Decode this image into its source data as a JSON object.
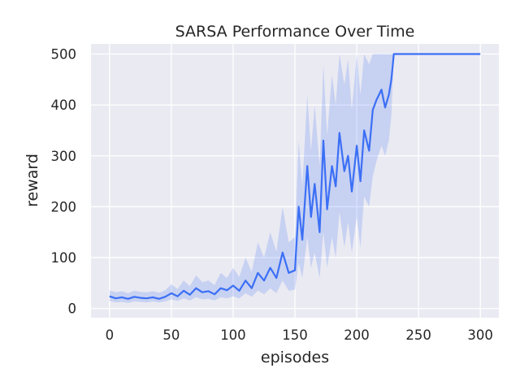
{
  "chart_data": {
    "type": "line",
    "title": "SARSA Performance Over Time",
    "xlabel": "episodes",
    "ylabel": "reward",
    "xlim": [
      -15,
      315
    ],
    "ylim": [
      -18,
      520
    ],
    "xticks": [
      0,
      50,
      100,
      150,
      200,
      250,
      300
    ],
    "yticks": [
      0,
      100,
      200,
      300,
      400,
      500
    ],
    "grid": true,
    "style": "seaborn-darkgrid",
    "colors": {
      "line": "#3b6ff5",
      "band": "#3b6ff5",
      "plot_background": "#eaeaf2",
      "grid": "#ffffff"
    },
    "series": [
      {
        "x": [
          0,
          5,
          10,
          15,
          20,
          25,
          30,
          35,
          40,
          45,
          50,
          55,
          60,
          65,
          70,
          75,
          80,
          85,
          90,
          95,
          100,
          105,
          110,
          115,
          120,
          125,
          130,
          135,
          140,
          145,
          150,
          153,
          156,
          160,
          163,
          166,
          170,
          173,
          176,
          180,
          183,
          186,
          190,
          193,
          196,
          200,
          203,
          206,
          210,
          213,
          216,
          220,
          223,
          226,
          228,
          230,
          235,
          240,
          245,
          250,
          260,
          270,
          280,
          290,
          300
        ],
        "mean": [
          24,
          20,
          22,
          19,
          23,
          21,
          20,
          22,
          19,
          23,
          30,
          24,
          35,
          27,
          40,
          32,
          34,
          28,
          40,
          36,
          45,
          35,
          55,
          40,
          70,
          55,
          80,
          60,
          110,
          70,
          75,
          200,
          135,
          280,
          180,
          245,
          150,
          330,
          195,
          280,
          240,
          345,
          270,
          300,
          230,
          320,
          250,
          350,
          310,
          390,
          410,
          430,
          395,
          420,
          450,
          500,
          500,
          500,
          500,
          500,
          500,
          500,
          500,
          500,
          500
        ],
        "lower": [
          15,
          12,
          13,
          11,
          14,
          13,
          12,
          14,
          12,
          14,
          18,
          15,
          20,
          16,
          22,
          18,
          19,
          16,
          22,
          20,
          24,
          20,
          30,
          23,
          35,
          28,
          40,
          30,
          55,
          35,
          37,
          90,
          60,
          140,
          80,
          110,
          60,
          150,
          80,
          140,
          100,
          190,
          120,
          170,
          110,
          180,
          120,
          220,
          200,
          260,
          290,
          320,
          300,
          330,
          380,
          500,
          500,
          500,
          500,
          500,
          500,
          500,
          500,
          500,
          500
        ],
        "upper": [
          36,
          32,
          34,
          30,
          35,
          33,
          32,
          34,
          31,
          36,
          48,
          38,
          55,
          44,
          65,
          52,
          55,
          46,
          70,
          60,
          80,
          62,
          100,
          72,
          130,
          100,
          150,
          112,
          200,
          130,
          140,
          330,
          240,
          420,
          310,
          400,
          280,
          480,
          340,
          460,
          400,
          500,
          440,
          490,
          390,
          500,
          420,
          500,
          480,
          500,
          500,
          500,
          500,
          500,
          500,
          500,
          500,
          500,
          500,
          500,
          500,
          500,
          500,
          500,
          500
        ]
      }
    ]
  }
}
